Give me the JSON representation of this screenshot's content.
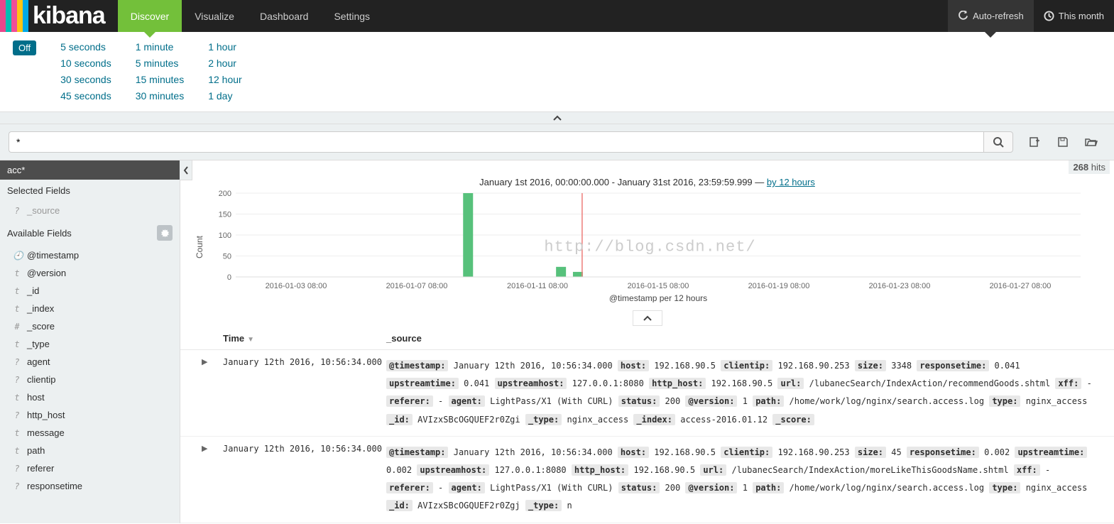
{
  "brand": {
    "name": "kibana",
    "stripes": [
      "#e8478b",
      "#00bfb3",
      "#f04e98",
      "#fec514",
      "#00a9e5"
    ]
  },
  "nav": {
    "tabs": [
      {
        "label": "Discover",
        "name": "discover",
        "active": true
      },
      {
        "label": "Visualize",
        "name": "visualize",
        "active": false
      },
      {
        "label": "Dashboard",
        "name": "dashboard",
        "active": false
      },
      {
        "label": "Settings",
        "name": "settings",
        "active": false
      }
    ],
    "right": [
      {
        "label": "Auto-refresh",
        "icon": "refresh",
        "active": true
      },
      {
        "label": "This month",
        "icon": "clock",
        "active": false
      }
    ]
  },
  "refresh": {
    "off": "Off",
    "cols": [
      [
        "5 seconds",
        "10 seconds",
        "30 seconds",
        "45 seconds"
      ],
      [
        "1 minute",
        "5 minutes",
        "15 minutes",
        "30 minutes"
      ],
      [
        "1 hour",
        "2 hour",
        "12 hour",
        "1 day"
      ]
    ]
  },
  "search": {
    "value": "*"
  },
  "index_pattern": "acc*",
  "hits": {
    "count": "268",
    "suffix": "hits"
  },
  "sidebar": {
    "selected_heading": "Selected Fields",
    "available_heading": "Available Fields",
    "selected": [
      {
        "type": "?",
        "name": "_source"
      }
    ],
    "available": [
      {
        "type": "🕘",
        "name": "@timestamp"
      },
      {
        "type": "t",
        "name": "@version"
      },
      {
        "type": "t",
        "name": "_id"
      },
      {
        "type": "t",
        "name": "_index"
      },
      {
        "type": "#",
        "name": "_score"
      },
      {
        "type": "t",
        "name": "_type"
      },
      {
        "type": "?",
        "name": "agent"
      },
      {
        "type": "?",
        "name": "clientip"
      },
      {
        "type": "t",
        "name": "host"
      },
      {
        "type": "?",
        "name": "http_host"
      },
      {
        "type": "t",
        "name": "message"
      },
      {
        "type": "t",
        "name": "path"
      },
      {
        "type": "?",
        "name": "referer"
      },
      {
        "type": "?",
        "name": "responsetime"
      }
    ]
  },
  "watermark": "http://blog.csdn.net/",
  "histogram": {
    "caption_prefix": "January 1st 2016, 00:00:00.000 - January 31st 2016, 23:59:59.999 — ",
    "interval_link": "by 12 hours",
    "y_label": "Count",
    "x_label": "@timestamp per 12 hours",
    "ylim": [
      0,
      200
    ],
    "ytick_step": 50,
    "yticks": [
      200,
      150,
      100,
      50,
      0
    ],
    "bar_color": "#57c17b",
    "marker_color": "#ed7d79",
    "grid_color": "#eeeeee",
    "axis_color": "#ddd",
    "text_color": "#666",
    "x_categories": [
      "2016-01-03 08:00",
      "2016-01-07 08:00",
      "2016-01-11 08:00",
      "2016-01-15 08:00",
      "2016-01-19 08:00",
      "2016-01-23 08:00",
      "2016-01-27 08:00"
    ],
    "bars": [
      {
        "pos": 0.275,
        "value": 230
      },
      {
        "pos": 0.385,
        "value": 24
      },
      {
        "pos": 0.405,
        "value": 12
      }
    ],
    "marker_pos": 0.41
  },
  "table": {
    "headers": {
      "time": "Time",
      "source": "_source"
    },
    "rows": [
      {
        "time": "January 12th 2016, 10:56:34.000",
        "kv": [
          [
            "@timestamp",
            "January 12th 2016, 10:56:34.000"
          ],
          [
            "host",
            "192.168.90.5"
          ],
          [
            "clientip",
            "192.168.90.253"
          ],
          [
            "size",
            "3348"
          ],
          [
            "responsetime",
            "0.041"
          ],
          [
            "upstreamtime",
            "0.041"
          ],
          [
            "upstreamhost",
            "127.0.0.1:8080"
          ],
          [
            "http_host",
            "192.168.90.5"
          ],
          [
            "url",
            "/lubanecSearch/IndexAction/recommendGoods.shtml"
          ],
          [
            "xff",
            "-"
          ],
          [
            "referer",
            "-"
          ],
          [
            "agent",
            "LightPass/X1 (With CURL)"
          ],
          [
            "status",
            "200"
          ],
          [
            "@version",
            "1"
          ],
          [
            "path",
            "/home/work/log/nginx/search.access.log"
          ],
          [
            "type",
            "nginx_access"
          ],
          [
            "_id",
            "AVIzxSBcOGQUEF2r0Zgi"
          ],
          [
            "_type",
            "nginx_access"
          ],
          [
            "_index",
            "access-2016.01.12"
          ],
          [
            "_score",
            ""
          ]
        ]
      },
      {
        "time": "January 12th 2016, 10:56:34.000",
        "kv": [
          [
            "@timestamp",
            "January 12th 2016, 10:56:34.000"
          ],
          [
            "host",
            "192.168.90.5"
          ],
          [
            "clientip",
            "192.168.90.253"
          ],
          [
            "size",
            "45"
          ],
          [
            "responsetime",
            "0.002"
          ],
          [
            "upstreamtime",
            "0.002"
          ],
          [
            "upstreamhost",
            "127.0.0.1:8080"
          ],
          [
            "http_host",
            "192.168.90.5"
          ],
          [
            "url",
            "/lubanecSearch/IndexAction/moreLikeThisGoodsName.shtml"
          ],
          [
            "xff",
            "-"
          ],
          [
            "referer",
            "-"
          ],
          [
            "agent",
            "LightPass/X1 (With CURL)"
          ],
          [
            "status",
            "200"
          ],
          [
            "@version",
            "1"
          ],
          [
            "path",
            "/home/work/log/nginx/search.access.log"
          ],
          [
            "type",
            "nginx_access"
          ],
          [
            "_id",
            "AVIzxSBcOGQUEF2r0Zgj"
          ],
          [
            "_type",
            "n"
          ]
        ]
      }
    ]
  }
}
